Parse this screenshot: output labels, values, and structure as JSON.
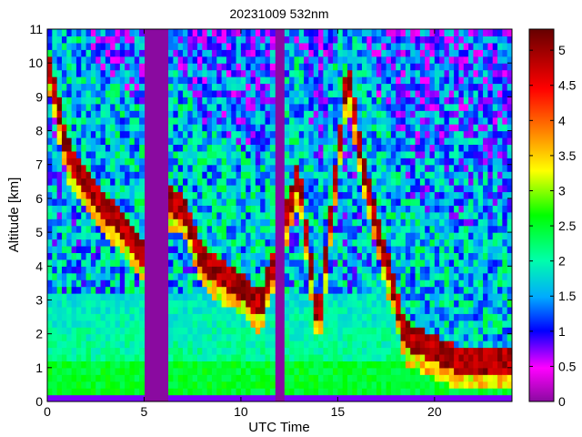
{
  "chart_data": {
    "type": "heatmap",
    "title": "20231009 532nm",
    "xlabel": "UTC Time",
    "ylabel": "Altitude [km]",
    "xlim": [
      0,
      24
    ],
    "ylim": [
      0,
      11
    ],
    "xticks": [
      0,
      5,
      10,
      15,
      20
    ],
    "yticks": [
      0,
      1,
      2,
      3,
      4,
      5,
      6,
      7,
      8,
      9,
      10,
      11
    ],
    "colorbar": {
      "range": [
        0,
        5.3
      ],
      "ticks": [
        "0",
        "0.5",
        "1",
        "1.5",
        "2",
        "2.5",
        "3",
        "3.5",
        "4",
        "4.5",
        "5"
      ],
      "colormap": [
        "#8a0aa0",
        "#ff00ff",
        "#0000ff",
        "#00aaff",
        "#00ffaa",
        "#00ff00",
        "#ffff00",
        "#ff8800",
        "#ff0000",
        "#660000"
      ]
    },
    "data_gaps_utc": [
      [
        4.9,
        6.2
      ],
      [
        11.8,
        12.2
      ]
    ],
    "cloud_layer_tops_km": [
      {
        "t": 0.2,
        "alt": 9.8
      },
      {
        "t": 1.0,
        "alt": 7.5
      },
      {
        "t": 2.0,
        "alt": 6.5
      },
      {
        "t": 3.0,
        "alt": 5.8
      },
      {
        "t": 4.0,
        "alt": 5.2
      },
      {
        "t": 4.9,
        "alt": 4.5
      },
      {
        "t": 6.2,
        "alt": 6.0
      },
      {
        "t": 7.0,
        "alt": 5.8
      },
      {
        "t": 8.0,
        "alt": 4.3
      },
      {
        "t": 9.0,
        "alt": 3.8
      },
      {
        "t": 10.0,
        "alt": 3.5
      },
      {
        "t": 11.0,
        "alt": 2.9
      },
      {
        "t": 13.0,
        "alt": 6.8
      },
      {
        "t": 14.0,
        "alt": 2.3
      },
      {
        "t": 15.5,
        "alt": 9.8
      },
      {
        "t": 16.5,
        "alt": 6.5
      },
      {
        "t": 18.5,
        "alt": 2.0
      },
      {
        "t": 21.5,
        "alt": 1.2
      },
      {
        "t": 23.5,
        "alt": 1.3
      }
    ]
  }
}
